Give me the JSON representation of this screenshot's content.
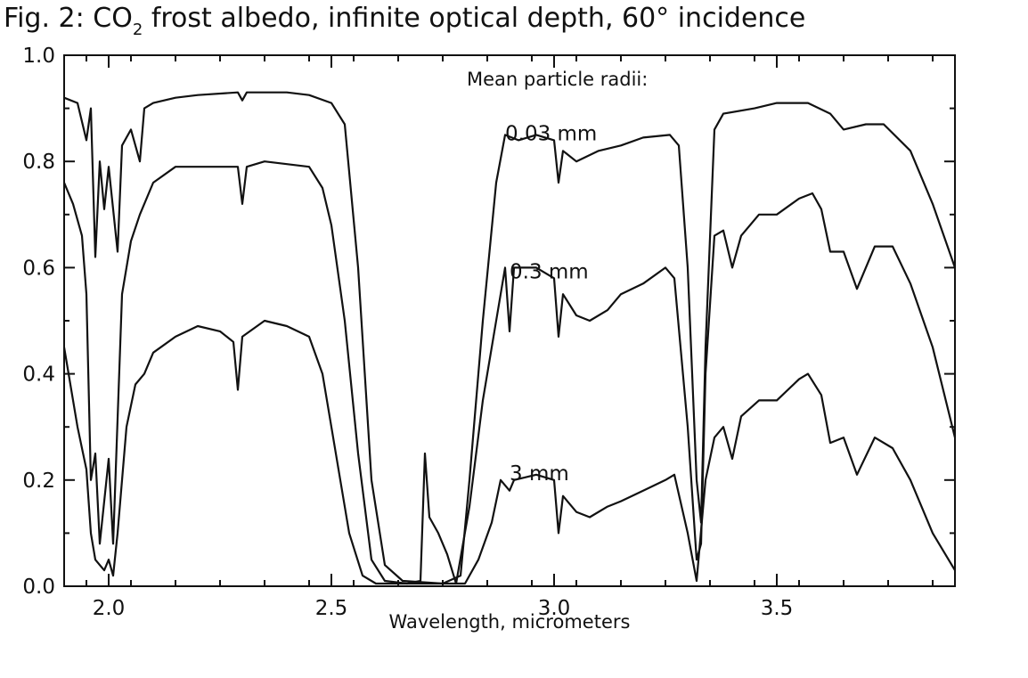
{
  "chart_data": {
    "type": "line",
    "title": {
      "prefix": "Fig. 2:  CO",
      "subscript": "2",
      "suffix": " frost albedo, infinite optical depth, 60° incidence"
    },
    "xlabel": "Wavelength, micrometers",
    "ylabel": "",
    "xlim": [
      1.9,
      3.9
    ],
    "ylim": [
      0.0,
      1.0
    ],
    "x_ticks": [
      2.0,
      2.5,
      3.0,
      3.5
    ],
    "x_tick_labels": [
      "2.0",
      "2.5",
      "3.0",
      "3.5"
    ],
    "y_ticks": [
      0.0,
      0.2,
      0.4,
      0.6,
      0.8,
      1.0
    ],
    "y_tick_labels": [
      "0.0",
      "0.2",
      "0.4",
      "0.6",
      "0.8",
      "1.0"
    ],
    "legend_title": "Mean particle radii:",
    "grid": false,
    "series": [
      {
        "name": "0.03 mm",
        "label_at": [
          2.89,
          0.84
        ],
        "points": [
          [
            1.9,
            0.92
          ],
          [
            1.93,
            0.91
          ],
          [
            1.95,
            0.84
          ],
          [
            1.96,
            0.9
          ],
          [
            1.97,
            0.62
          ],
          [
            1.98,
            0.8
          ],
          [
            1.99,
            0.71
          ],
          [
            2.0,
            0.79
          ],
          [
            2.02,
            0.63
          ],
          [
            2.03,
            0.83
          ],
          [
            2.05,
            0.86
          ],
          [
            2.07,
            0.8
          ],
          [
            2.08,
            0.9
          ],
          [
            2.1,
            0.91
          ],
          [
            2.15,
            0.92
          ],
          [
            2.2,
            0.925
          ],
          [
            2.29,
            0.93
          ],
          [
            2.3,
            0.915
          ],
          [
            2.31,
            0.93
          ],
          [
            2.4,
            0.93
          ],
          [
            2.45,
            0.925
          ],
          [
            2.5,
            0.91
          ],
          [
            2.53,
            0.87
          ],
          [
            2.56,
            0.6
          ],
          [
            2.59,
            0.2
          ],
          [
            2.62,
            0.04
          ],
          [
            2.66,
            0.01
          ],
          [
            2.75,
            0.005
          ],
          [
            2.79,
            0.02
          ],
          [
            2.81,
            0.2
          ],
          [
            2.84,
            0.5
          ],
          [
            2.87,
            0.76
          ],
          [
            2.89,
            0.85
          ],
          [
            2.92,
            0.84
          ],
          [
            2.96,
            0.85
          ],
          [
            3.0,
            0.84
          ],
          [
            3.01,
            0.76
          ],
          [
            3.02,
            0.82
          ],
          [
            3.05,
            0.8
          ],
          [
            3.1,
            0.82
          ],
          [
            3.15,
            0.83
          ],
          [
            3.2,
            0.845
          ],
          [
            3.26,
            0.85
          ],
          [
            3.28,
            0.83
          ],
          [
            3.3,
            0.6
          ],
          [
            3.32,
            0.2
          ],
          [
            3.33,
            0.12
          ],
          [
            3.34,
            0.45
          ],
          [
            3.36,
            0.86
          ],
          [
            3.38,
            0.89
          ],
          [
            3.45,
            0.9
          ],
          [
            3.5,
            0.91
          ],
          [
            3.57,
            0.91
          ],
          [
            3.62,
            0.89
          ],
          [
            3.65,
            0.86
          ],
          [
            3.7,
            0.87
          ],
          [
            3.74,
            0.87
          ],
          [
            3.8,
            0.82
          ],
          [
            3.85,
            0.72
          ],
          [
            3.9,
            0.6
          ]
        ]
      },
      {
        "name": "0.3 mm",
        "label_at": [
          2.9,
          0.58
        ],
        "points": [
          [
            1.9,
            0.76
          ],
          [
            1.92,
            0.72
          ],
          [
            1.94,
            0.66
          ],
          [
            1.95,
            0.55
          ],
          [
            1.96,
            0.2
          ],
          [
            1.97,
            0.25
          ],
          [
            1.98,
            0.08
          ],
          [
            2.0,
            0.24
          ],
          [
            2.01,
            0.08
          ],
          [
            2.03,
            0.55
          ],
          [
            2.05,
            0.65
          ],
          [
            2.07,
            0.7
          ],
          [
            2.1,
            0.76
          ],
          [
            2.15,
            0.79
          ],
          [
            2.2,
            0.79
          ],
          [
            2.29,
            0.79
          ],
          [
            2.3,
            0.72
          ],
          [
            2.31,
            0.79
          ],
          [
            2.35,
            0.8
          ],
          [
            2.4,
            0.795
          ],
          [
            2.45,
            0.79
          ],
          [
            2.48,
            0.75
          ],
          [
            2.5,
            0.68
          ],
          [
            2.53,
            0.5
          ],
          [
            2.56,
            0.25
          ],
          [
            2.59,
            0.05
          ],
          [
            2.62,
            0.01
          ],
          [
            2.67,
            0.005
          ],
          [
            2.7,
            0.01
          ],
          [
            2.71,
            0.25
          ],
          [
            2.72,
            0.13
          ],
          [
            2.74,
            0.1
          ],
          [
            2.76,
            0.06
          ],
          [
            2.78,
            0.005
          ],
          [
            2.81,
            0.15
          ],
          [
            2.84,
            0.35
          ],
          [
            2.87,
            0.5
          ],
          [
            2.89,
            0.6
          ],
          [
            2.9,
            0.48
          ],
          [
            2.91,
            0.6
          ],
          [
            2.96,
            0.6
          ],
          [
            3.0,
            0.58
          ],
          [
            3.01,
            0.47
          ],
          [
            3.02,
            0.55
          ],
          [
            3.05,
            0.51
          ],
          [
            3.08,
            0.5
          ],
          [
            3.12,
            0.52
          ],
          [
            3.15,
            0.55
          ],
          [
            3.2,
            0.57
          ],
          [
            3.25,
            0.6
          ],
          [
            3.27,
            0.58
          ],
          [
            3.3,
            0.3
          ],
          [
            3.32,
            0.05
          ],
          [
            3.33,
            0.08
          ],
          [
            3.34,
            0.4
          ],
          [
            3.36,
            0.66
          ],
          [
            3.38,
            0.67
          ],
          [
            3.4,
            0.6
          ],
          [
            3.42,
            0.66
          ],
          [
            3.46,
            0.7
          ],
          [
            3.5,
            0.7
          ],
          [
            3.55,
            0.73
          ],
          [
            3.58,
            0.74
          ],
          [
            3.6,
            0.71
          ],
          [
            3.62,
            0.63
          ],
          [
            3.65,
            0.63
          ],
          [
            3.68,
            0.56
          ],
          [
            3.72,
            0.64
          ],
          [
            3.76,
            0.64
          ],
          [
            3.8,
            0.57
          ],
          [
            3.85,
            0.45
          ],
          [
            3.9,
            0.28
          ]
        ]
      },
      {
        "name": "3 mm",
        "label_at": [
          2.9,
          0.2
        ],
        "points": [
          [
            1.9,
            0.45
          ],
          [
            1.91,
            0.4
          ],
          [
            1.93,
            0.3
          ],
          [
            1.95,
            0.22
          ],
          [
            1.96,
            0.1
          ],
          [
            1.97,
            0.05
          ],
          [
            1.98,
            0.04
          ],
          [
            1.99,
            0.03
          ],
          [
            2.0,
            0.05
          ],
          [
            2.01,
            0.02
          ],
          [
            2.02,
            0.1
          ],
          [
            2.04,
            0.3
          ],
          [
            2.06,
            0.38
          ],
          [
            2.08,
            0.4
          ],
          [
            2.1,
            0.44
          ],
          [
            2.15,
            0.47
          ],
          [
            2.2,
            0.49
          ],
          [
            2.25,
            0.48
          ],
          [
            2.28,
            0.46
          ],
          [
            2.29,
            0.37
          ],
          [
            2.3,
            0.47
          ],
          [
            2.35,
            0.5
          ],
          [
            2.4,
            0.49
          ],
          [
            2.45,
            0.47
          ],
          [
            2.48,
            0.4
          ],
          [
            2.5,
            0.3
          ],
          [
            2.54,
            0.1
          ],
          [
            2.57,
            0.02
          ],
          [
            2.6,
            0.005
          ],
          [
            2.7,
            0.005
          ],
          [
            2.8,
            0.005
          ],
          [
            2.83,
            0.05
          ],
          [
            2.86,
            0.12
          ],
          [
            2.88,
            0.2
          ],
          [
            2.9,
            0.18
          ],
          [
            2.91,
            0.2
          ],
          [
            2.96,
            0.21
          ],
          [
            3.0,
            0.2
          ],
          [
            3.01,
            0.1
          ],
          [
            3.02,
            0.17
          ],
          [
            3.05,
            0.14
          ],
          [
            3.08,
            0.13
          ],
          [
            3.12,
            0.15
          ],
          [
            3.15,
            0.16
          ],
          [
            3.2,
            0.18
          ],
          [
            3.25,
            0.2
          ],
          [
            3.27,
            0.21
          ],
          [
            3.3,
            0.1
          ],
          [
            3.32,
            0.01
          ],
          [
            3.34,
            0.2
          ],
          [
            3.36,
            0.28
          ],
          [
            3.38,
            0.3
          ],
          [
            3.4,
            0.24
          ],
          [
            3.42,
            0.32
          ],
          [
            3.46,
            0.35
          ],
          [
            3.5,
            0.35
          ],
          [
            3.55,
            0.39
          ],
          [
            3.57,
            0.4
          ],
          [
            3.6,
            0.36
          ],
          [
            3.62,
            0.27
          ],
          [
            3.65,
            0.28
          ],
          [
            3.68,
            0.21
          ],
          [
            3.72,
            0.28
          ],
          [
            3.76,
            0.26
          ],
          [
            3.8,
            0.2
          ],
          [
            3.85,
            0.1
          ],
          [
            3.9,
            0.03
          ]
        ]
      }
    ]
  }
}
